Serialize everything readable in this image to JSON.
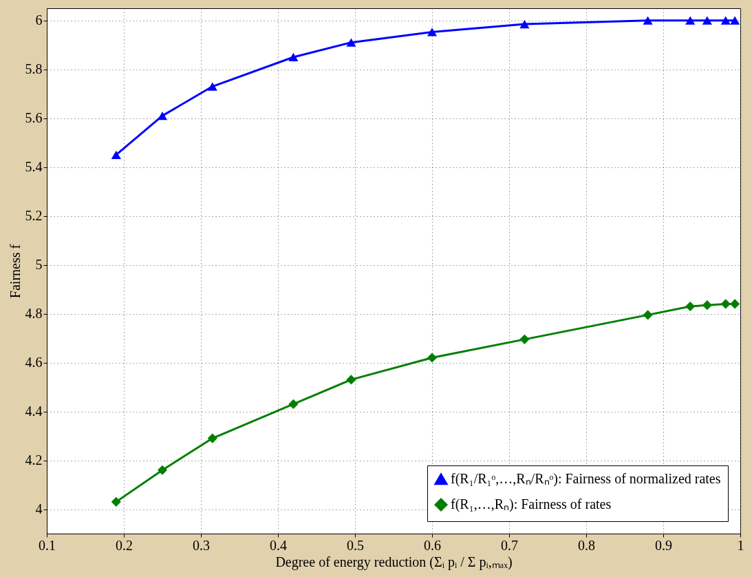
{
  "chart_data": {
    "type": "line",
    "xlabel": "Degree of energy reduction (Σᵢ pᵢ / Σ pᵢ,ₘₐₓ)",
    "ylabel": "Fairness f",
    "x": [
      0.19,
      0.25,
      0.315,
      0.42,
      0.495,
      0.6,
      0.72,
      0.88,
      0.935,
      0.957,
      0.981,
      0.993
    ],
    "series": [
      {
        "name": "f(R₁/R₁ᵒ,…,Rₙ/Rₙᵒ): Fairness of normalized rates",
        "color": "#0000ff",
        "marker": "triangle",
        "values": [
          5.45,
          5.61,
          5.73,
          5.85,
          5.91,
          5.953,
          5.985,
          6.0,
          6.0,
          6.0,
          6.0,
          6.0
        ]
      },
      {
        "name": "f(R₁,…,Rₙ): Fairness of rates",
        "color": "#007f00",
        "marker": "diamond",
        "values": [
          4.03,
          4.16,
          4.29,
          4.43,
          4.53,
          4.62,
          4.695,
          4.795,
          4.83,
          4.835,
          4.84,
          4.84
        ]
      }
    ],
    "xlim": [
      0.1,
      1
    ],
    "xticks": [
      0.1,
      0.2,
      0.3,
      0.4,
      0.5,
      0.6,
      0.7,
      0.8,
      0.9,
      1
    ],
    "ylim": [
      3.9,
      6.05
    ],
    "yticks": [
      4,
      4.2,
      4.4,
      4.6,
      4.8,
      5,
      5.2,
      5.4,
      5.6,
      5.8,
      6
    ],
    "grid": true,
    "legend": "bottom right",
    "line_style": "solid"
  }
}
